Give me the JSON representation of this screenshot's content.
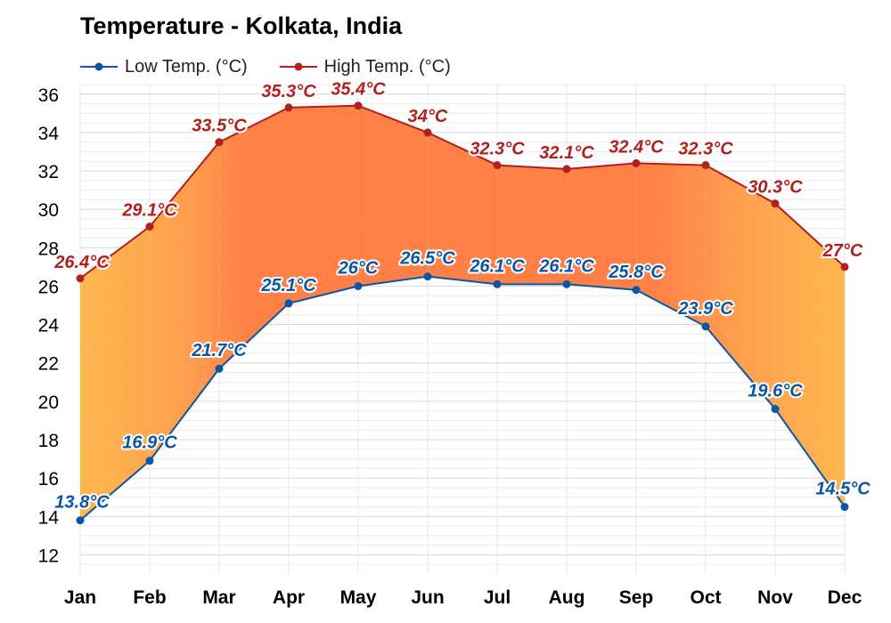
{
  "chart_data": {
    "type": "line",
    "title": "Temperature - Kolkata, India",
    "categories": [
      "Jan",
      "Feb",
      "Mar",
      "Apr",
      "May",
      "Jun",
      "Jul",
      "Aug",
      "Sep",
      "Oct",
      "Nov",
      "Dec"
    ],
    "series": [
      {
        "name": "Low Temp. (°C)",
        "color": "#0a56a5",
        "values": [
          13.8,
          16.9,
          21.7,
          25.1,
          26,
          26.5,
          26.1,
          26.1,
          25.8,
          23.9,
          19.6,
          14.5
        ],
        "labels": [
          "13.8°C",
          "16.9°C",
          "21.7°C",
          "25.1°C",
          "26°C",
          "26.5°C",
          "26.1°C",
          "26.1°C",
          "25.8°C",
          "23.9°C",
          "19.6°C",
          "14.5°C"
        ]
      },
      {
        "name": "High Temp. (°C)",
        "color": "#b21f1f",
        "values": [
          26.4,
          29.1,
          33.5,
          35.3,
          35.4,
          34,
          32.3,
          32.1,
          32.4,
          32.3,
          30.3,
          27
        ],
        "labels": [
          "26.4°C",
          "29.1°C",
          "33.5°C",
          "35.3°C",
          "35.4°C",
          "34°C",
          "32.3°C",
          "32.1°C",
          "32.4°C",
          "32.3°C",
          "30.3°C",
          "27°C"
        ]
      }
    ],
    "yticks": [
      "12",
      "14",
      "16",
      "18",
      "20",
      "22",
      "24",
      "26",
      "28",
      "30",
      "32",
      "34",
      "36"
    ],
    "ylim": [
      11,
      36.5
    ],
    "grid": true,
    "legend": "top-left",
    "fill_colors": {
      "warm": "#ffb347",
      "hot": "#ff7a3d"
    }
  }
}
